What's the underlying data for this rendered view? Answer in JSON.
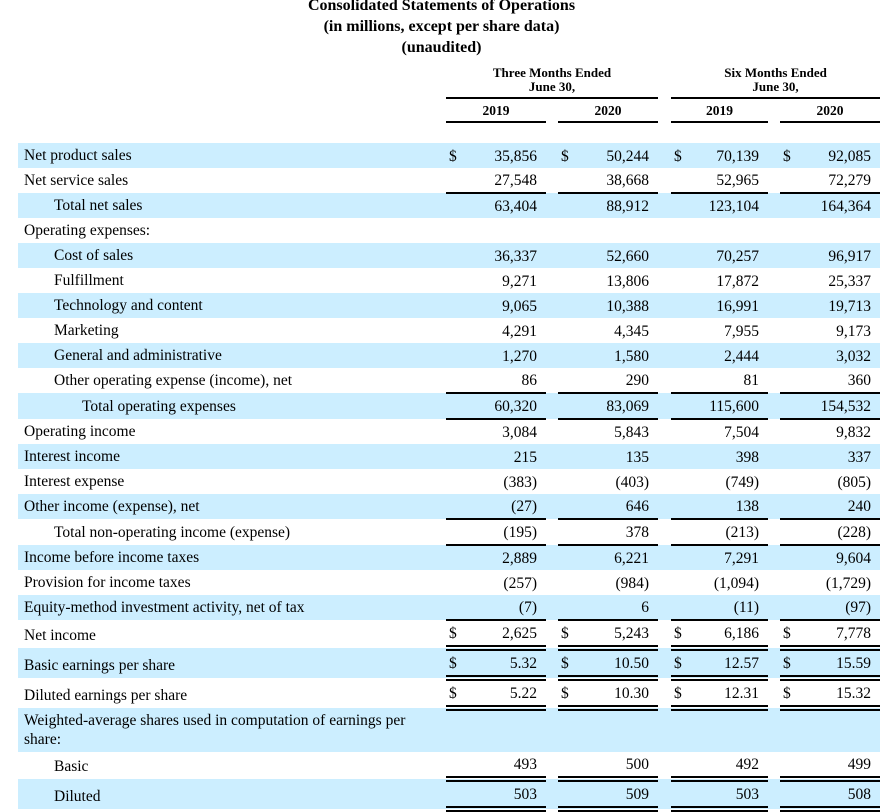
{
  "title": {
    "line1": "Consolidated Statements of Operations",
    "line2": "(in millions, except per share data)",
    "line3": "(unaudited)"
  },
  "colors": {
    "row_shade": "#cceeff",
    "text": "#000000",
    "rule": "#000000"
  },
  "header": {
    "groups": [
      {
        "label": "Three Months Ended",
        "sublabel": "June 30,"
      },
      {
        "label": "Six Months Ended",
        "sublabel": "June 30,"
      }
    ],
    "years": [
      "2019",
      "2020",
      "2019",
      "2020"
    ]
  },
  "table": {
    "rows": [
      {
        "label": "Net product sales",
        "indent": 0,
        "shaded": true,
        "dollar": true,
        "rule": "none",
        "values": [
          "35,856",
          "50,244",
          "70,139",
          "92,085"
        ]
      },
      {
        "label": "Net service sales",
        "indent": 0,
        "shaded": false,
        "dollar": false,
        "rule": "single",
        "values": [
          "27,548",
          "38,668",
          "52,965",
          "72,279"
        ]
      },
      {
        "label": "Total net sales",
        "indent": 1,
        "shaded": true,
        "dollar": false,
        "rule": "none",
        "values": [
          "63,404",
          "88,912",
          "123,104",
          "164,364"
        ]
      },
      {
        "label": "Operating expenses:",
        "indent": 0,
        "shaded": false,
        "dollar": false,
        "rule": "none",
        "values": [
          "",
          "",
          "",
          ""
        ]
      },
      {
        "label": "Cost of sales",
        "indent": 1,
        "shaded": true,
        "dollar": false,
        "rule": "none",
        "values": [
          "36,337",
          "52,660",
          "70,257",
          "96,917"
        ]
      },
      {
        "label": "Fulfillment",
        "indent": 1,
        "shaded": false,
        "dollar": false,
        "rule": "none",
        "values": [
          "9,271",
          "13,806",
          "17,872",
          "25,337"
        ]
      },
      {
        "label": "Technology and content",
        "indent": 1,
        "shaded": true,
        "dollar": false,
        "rule": "none",
        "values": [
          "9,065",
          "10,388",
          "16,991",
          "19,713"
        ]
      },
      {
        "label": "Marketing",
        "indent": 1,
        "shaded": false,
        "dollar": false,
        "rule": "none",
        "values": [
          "4,291",
          "4,345",
          "7,955",
          "9,173"
        ]
      },
      {
        "label": "General and administrative",
        "indent": 1,
        "shaded": true,
        "dollar": false,
        "rule": "none",
        "values": [
          "1,270",
          "1,580",
          "2,444",
          "3,032"
        ]
      },
      {
        "label": "Other operating expense (income), net",
        "indent": 1,
        "shaded": false,
        "dollar": false,
        "rule": "single",
        "values": [
          "86",
          "290",
          "81",
          "360"
        ]
      },
      {
        "label": "Total operating expenses",
        "indent": 2,
        "shaded": true,
        "dollar": false,
        "rule": "single",
        "values": [
          "60,320",
          "83,069",
          "115,600",
          "154,532"
        ]
      },
      {
        "label": "Operating income",
        "indent": 0,
        "shaded": false,
        "dollar": false,
        "rule": "none",
        "values": [
          "3,084",
          "5,843",
          "7,504",
          "9,832"
        ]
      },
      {
        "label": "Interest income",
        "indent": 0,
        "shaded": true,
        "dollar": false,
        "rule": "none",
        "values": [
          "215",
          "135",
          "398",
          "337"
        ]
      },
      {
        "label": "Interest expense",
        "indent": 0,
        "shaded": false,
        "dollar": false,
        "rule": "none",
        "values": [
          "(383)",
          "(403)",
          "(749)",
          "(805)"
        ]
      },
      {
        "label": "Other income (expense), net",
        "indent": 0,
        "shaded": true,
        "dollar": false,
        "rule": "single",
        "values": [
          "(27)",
          "646",
          "138",
          "240"
        ]
      },
      {
        "label": "Total non-operating income (expense)",
        "indent": 1,
        "shaded": false,
        "dollar": false,
        "rule": "single",
        "values": [
          "(195)",
          "378",
          "(213)",
          "(228)"
        ]
      },
      {
        "label": "Income before income taxes",
        "indent": 0,
        "shaded": true,
        "dollar": false,
        "rule": "none",
        "values": [
          "2,889",
          "6,221",
          "7,291",
          "9,604"
        ]
      },
      {
        "label": "Provision for income taxes",
        "indent": 0,
        "shaded": false,
        "dollar": false,
        "rule": "none",
        "values": [
          "(257)",
          "(984)",
          "(1,094)",
          "(1,729)"
        ]
      },
      {
        "label": "Equity-method investment activity, net of tax",
        "indent": 0,
        "shaded": true,
        "dollar": false,
        "rule": "single",
        "values": [
          "(7)",
          "6",
          "(11)",
          "(97)"
        ]
      },
      {
        "label": "Net income",
        "indent": 0,
        "shaded": false,
        "dollar": true,
        "rule": "double",
        "values": [
          "2,625",
          "5,243",
          "6,186",
          "7,778"
        ]
      },
      {
        "label": "Basic earnings per share",
        "indent": 0,
        "shaded": true,
        "dollar": true,
        "rule": "double",
        "values": [
          "5.32",
          "10.50",
          "12.57",
          "15.59"
        ]
      },
      {
        "label": "Diluted earnings per share",
        "indent": 0,
        "shaded": false,
        "dollar": true,
        "rule": "double",
        "values": [
          "5.22",
          "10.30",
          "12.31",
          "15.32"
        ]
      },
      {
        "label": "Weighted-average shares used in computation of earnings per share:",
        "indent": 0,
        "shaded": true,
        "dollar": false,
        "rule": "none",
        "values": [
          "",
          "",
          "",
          ""
        ]
      },
      {
        "label": "Basic",
        "indent": 1,
        "shaded": false,
        "dollar": false,
        "rule": "double",
        "values": [
          "493",
          "500",
          "492",
          "499"
        ]
      },
      {
        "label": "Diluted",
        "indent": 1,
        "shaded": true,
        "dollar": false,
        "rule": "double",
        "values": [
          "503",
          "509",
          "503",
          "508"
        ]
      }
    ]
  }
}
